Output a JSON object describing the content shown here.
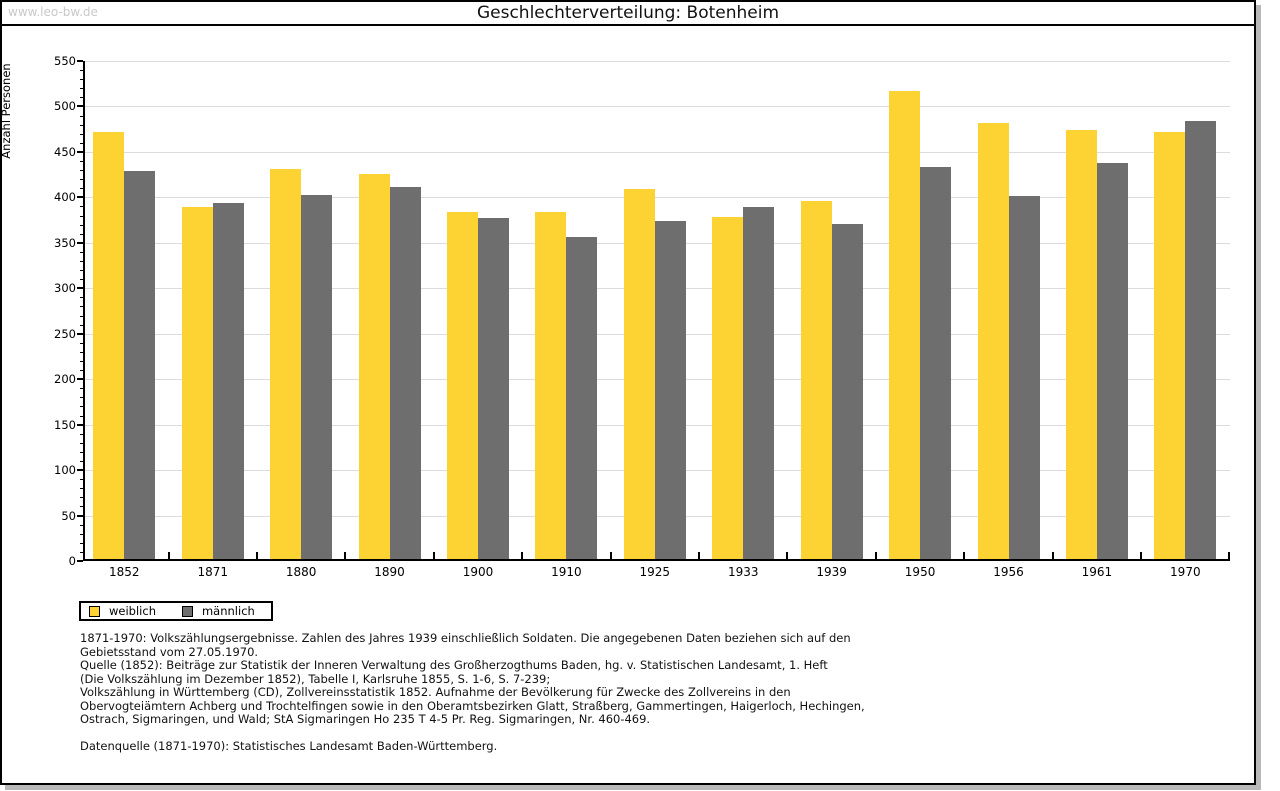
{
  "page": {
    "watermark": "www.leo-bw.de",
    "title": "Geschlechterverteilung: Botenheim"
  },
  "chart_data": {
    "type": "bar",
    "title": "Geschlechterverteilung: Botenheim",
    "xlabel": "",
    "ylabel": "Anzahl Personen",
    "ylim": [
      0,
      550
    ],
    "ytick_step": 50,
    "yminor_step": 10,
    "grid": true,
    "legend_position": "bottom-left",
    "categories": [
      "1852",
      "1871",
      "1880",
      "1890",
      "1900",
      "1910",
      "1925",
      "1933",
      "1939",
      "1950",
      "1956",
      "1961",
      "1970"
    ],
    "series": [
      {
        "name": "weiblich",
        "color": "#FCD332",
        "values": [
          470,
          387,
          429,
          424,
          382,
          382,
          407,
          376,
          394,
          515,
          480,
          472,
          470
        ]
      },
      {
        "name": "männlich",
        "color": "#6E6E6E",
        "values": [
          427,
          392,
          400,
          409,
          375,
          354,
          372,
          387,
          368,
          431,
          399,
          436,
          482
        ]
      }
    ]
  },
  "colors": {
    "weiblich": "#FCD332",
    "maennlich": "#6E6E6E",
    "gridline": "#dcdcdc",
    "axis": "#000000",
    "watermark": "#c9c9c9"
  },
  "footer": {
    "lines": [
      "1871-1970: Volkszählungsergebnisse. Zahlen des Jahres 1939 einschließlich Soldaten. Die angegebenen Daten beziehen sich auf den",
      "Gebietsstand vom 27.05.1970.",
      "Quelle (1852): Beiträge zur Statistik der Inneren Verwaltung des Großherzogthums Baden, hg. v. Statistischen Landesamt, 1. Heft",
      "(Die Volkszählung im Dezember 1852), Tabelle I, Karlsruhe 1855, S. 1-6, S. 7-239;",
      "Volkszählung in Württemberg (CD), Zollvereinsstatistik 1852. Aufnahme der Bevölkerung für Zwecke des Zollvereins in den",
      "Obervogteiämtern Achberg und Trochtelfingen sowie in den Oberamtsbezirken Glatt, Straßberg, Gammertingen, Haigerloch, Hechingen,",
      "Ostrach, Sigmaringen, und Wald; StA Sigmaringen Ho 235 T 4-5 Pr. Reg. Sigmaringen, Nr. 460-469.",
      "",
      "Datenquelle (1871-1970): Statistisches Landesamt Baden-Württemberg."
    ]
  }
}
